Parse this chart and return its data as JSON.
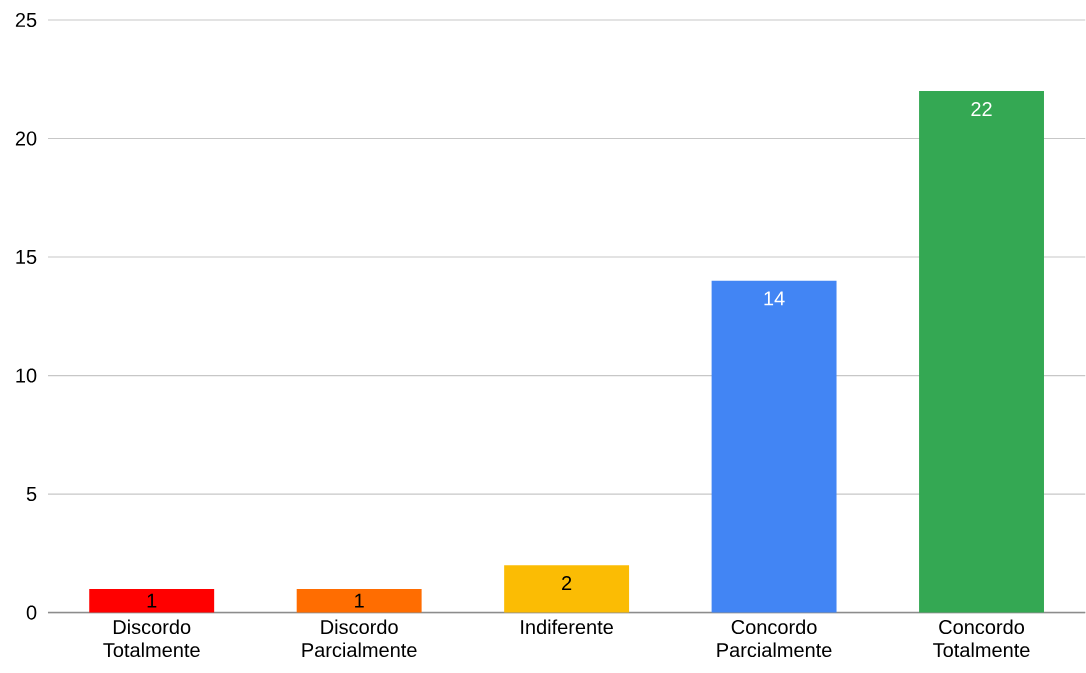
{
  "chart_data": {
    "type": "bar",
    "categories": [
      "Discordo Totalmente",
      "Discordo Parcialmente",
      "Indiferente",
      "Concordo Parcialmente",
      "Concordo Totalmente"
    ],
    "values": [
      1,
      1,
      2,
      14,
      22
    ],
    "colors": [
      "#ff0000",
      "#ff6d01",
      "#fbbc04",
      "#4285f4",
      "#34a853"
    ],
    "ylim": [
      0,
      25
    ],
    "yticks": [
      0,
      5,
      10,
      15,
      20,
      25
    ],
    "grid": "y",
    "data_labels": true
  }
}
